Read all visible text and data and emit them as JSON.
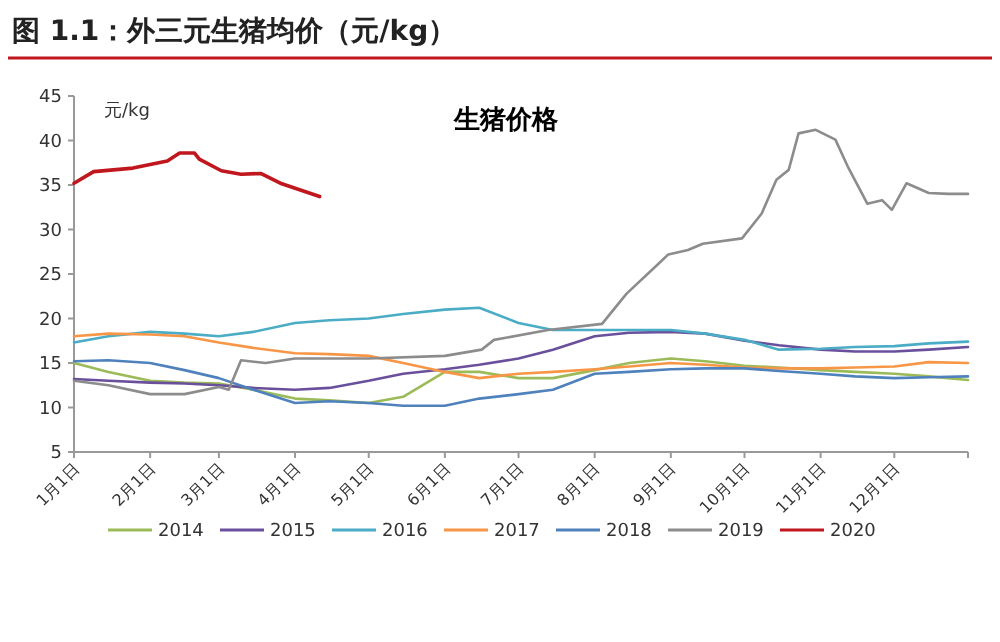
{
  "chart_data": {
    "type": "line",
    "title": "图 1.1：外三元生猪均价（元/kg）",
    "subtitle": "生猪价格",
    "ylabel": "元/kg",
    "x": [
      "--01-01",
      "--01-15",
      "--02-01",
      "--02-15",
      "--03-01",
      "--03-15",
      "--04-01",
      "--04-15",
      "--05-01",
      "--05-15",
      "--06-01",
      "--06-15",
      "--07-01",
      "--07-15",
      "--08-01",
      "--08-15",
      "--09-01",
      "--09-15",
      "--10-01",
      "--10-15",
      "--11-01",
      "--11-15",
      "--12-01",
      "--12-15",
      "--12-31"
    ],
    "series": [
      {
        "name": "2014",
        "color": "#9bbb59",
        "values": [
          15,
          14,
          13,
          12.8,
          12.7,
          12,
          11,
          10.8,
          10.5,
          11.2,
          14,
          14,
          13.3,
          13.3,
          14.2,
          15,
          15.5,
          15.2,
          14.7,
          14.5,
          14.2,
          14,
          13.8,
          13.5,
          13.1
        ]
      },
      {
        "name": "2015",
        "color": "#6a4f9c",
        "values": [
          13.2,
          13,
          12.8,
          12.7,
          12.5,
          12.2,
          12,
          12.2,
          13,
          13.8,
          14.3,
          14.8,
          15.5,
          16.5,
          18,
          18.4,
          18.5,
          18.3,
          17.5,
          17,
          16.5,
          16.3,
          16.3,
          16.5,
          16.8
        ]
      },
      {
        "name": "2016",
        "color": "#4bacc6",
        "values": [
          17.3,
          18,
          18.5,
          18.3,
          18,
          18.5,
          19.5,
          19.8,
          20,
          20.5,
          21,
          21.2,
          19.5,
          18.7,
          18.7,
          18.7,
          18.7,
          18.3,
          17.6,
          16.5,
          16.6,
          16.8,
          16.9,
          17.2,
          17.4
        ]
      },
      {
        "name": "2017",
        "color": "#f79646",
        "values": [
          18,
          18.3,
          18.2,
          18,
          17.3,
          16.7,
          16.1,
          16,
          15.8,
          15,
          14,
          13.3,
          13.8,
          14,
          14.3,
          14.6,
          15,
          14.8,
          14.5,
          14.4,
          14.4,
          14.5,
          14.6,
          15.1,
          15
        ]
      },
      {
        "name": "2018",
        "color": "#4f81bd",
        "values": [
          15.2,
          15.3,
          15,
          14.2,
          13.3,
          12,
          10.5,
          10.7,
          10.5,
          10.2,
          10.2,
          11,
          11.5,
          12,
          13.8,
          14,
          14.3,
          14.4,
          14.4,
          14.1,
          13.8,
          13.5,
          13.3,
          13.4,
          13.5
        ]
      },
      {
        "name": "2019",
        "color": "#8c8c8c",
        "x": [
          "--01-01",
          "--01-15",
          "--02-01",
          "--02-15",
          "--03-01",
          "--03-05",
          "--03-10",
          "--03-20",
          "--04-01",
          "--05-01",
          "--06-01",
          "--06-16",
          "--06-21",
          "--07-13",
          "--08-04",
          "--08-14",
          "--08-26",
          "--08-31",
          "--09-08",
          "--09-14",
          "--09-30",
          "--10-08",
          "--10-14",
          "--10-19",
          "--10-23",
          "--10-30",
          "--11-07",
          "--11-12",
          "--11-20",
          "--11-26",
          "--11-30",
          "--12-06",
          "--12-15",
          "--12-23",
          "--12-31"
        ],
        "values": [
          13,
          12.5,
          11.5,
          11.5,
          12.3,
          12,
          15.3,
          15,
          15.5,
          15.5,
          15.8,
          16.5,
          17.6,
          18.7,
          19.4,
          22.8,
          25.9,
          27.2,
          27.7,
          28.4,
          29,
          31.8,
          35.6,
          36.7,
          40.8,
          41.2,
          40.1,
          37.1,
          32.9,
          33.3,
          32.2,
          35.2,
          34.1,
          34,
          34
        ]
      },
      {
        "name": "2020",
        "color": "#c0161d",
        "x": [
          "--01-01",
          "--01-09",
          "--01-25",
          "--02-08",
          "--02-13",
          "--02-19",
          "--02-21",
          "--03-02",
          "--03-10",
          "--03-18",
          "--03-26",
          "--04-11"
        ],
        "values": [
          35.2,
          36.5,
          36.9,
          37.7,
          38.6,
          38.6,
          37.9,
          36.6,
          36.2,
          36.3,
          35.2,
          33.7
        ]
      }
    ],
    "xlim": [
      "--01-01",
      "--12-31"
    ],
    "xticks": [
      {
        "value": "--01-01",
        "label": "1月1日"
      },
      {
        "value": "--02-01",
        "label": "2月1日"
      },
      {
        "value": "--03-01",
        "label": "3月1日"
      },
      {
        "value": "--04-01",
        "label": "4月1日"
      },
      {
        "value": "--05-01",
        "label": "5月1日"
      },
      {
        "value": "--06-01",
        "label": "6月1日"
      },
      {
        "value": "--07-01",
        "label": "7月1日"
      },
      {
        "value": "--08-01",
        "label": "8月1日"
      },
      {
        "value": "--09-01",
        "label": "9月1日"
      },
      {
        "value": "--10-01",
        "label": "10月1日"
      },
      {
        "value": "--11-01",
        "label": "11月1日"
      },
      {
        "value": "--12-01",
        "label": "12月1日"
      }
    ],
    "ylim": [
      5,
      45
    ],
    "yticks": [
      5,
      10,
      15,
      20,
      25,
      30,
      35,
      40,
      45
    ],
    "legend": "bottom"
  }
}
